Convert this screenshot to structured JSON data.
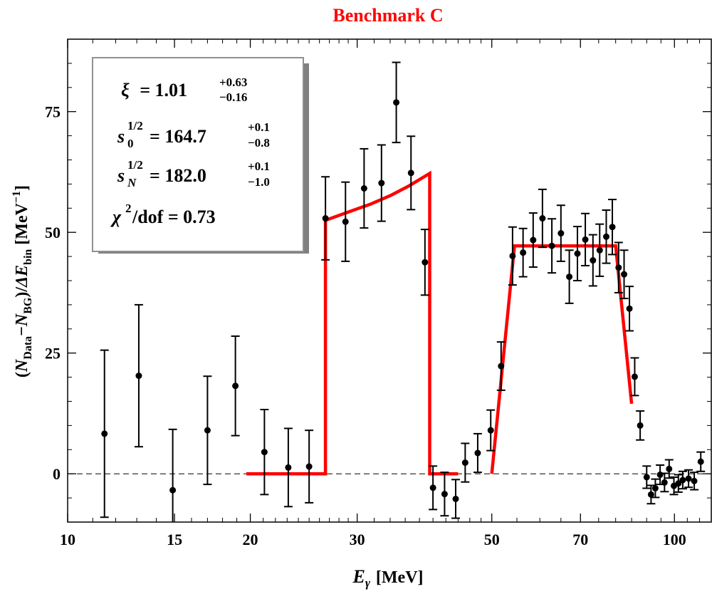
{
  "chart_data": {
    "type": "scatter",
    "title": "Benchmark C",
    "title_color": "#ff0000",
    "xlabel_symbol": "E",
    "xlabel_subscript": "γ",
    "xlabel_unit": "[MeV]",
    "ylabel": "(N_Data − N_BG)/ΔE_bin [MeV^−1]",
    "ylabel_parts": {
      "open": "(",
      "n1": "N",
      "sub1": "Data",
      "minus": "−",
      "n2": "N",
      "sub2": "BG",
      "close": ")/",
      "delta": "Δ",
      "e": "E",
      "sub3": "bin",
      "unit_open": " [MeV",
      "unit_sup": "−1",
      "unit_close": "]"
    },
    "x_scale": "log",
    "xlim": [
      10,
      115
    ],
    "ylim": [
      -10,
      90
    ],
    "x_ticks": [
      10,
      15,
      20,
      30,
      50,
      70,
      100
    ],
    "x_tick_labels": [
      "10",
      "15",
      "20",
      "30",
      "50",
      "70",
      "100"
    ],
    "x_minor_ticks": [
      11,
      12,
      13,
      14,
      16,
      17,
      18,
      19,
      21,
      22,
      23,
      24,
      25,
      26,
      27,
      28,
      29,
      32,
      34,
      36,
      38,
      40,
      42,
      44,
      46,
      48,
      55,
      60,
      65,
      75,
      80,
      85,
      90,
      95,
      105,
      110
    ],
    "y_ticks": [
      0,
      25,
      50,
      75
    ],
    "y_tick_labels": [
      "0",
      "25",
      "50",
      "75"
    ],
    "y_minor_ticks": [
      -5,
      5,
      10,
      15,
      20,
      30,
      35,
      40,
      45,
      55,
      60,
      65,
      70,
      80,
      85
    ],
    "zero_line": true,
    "fit_color": "#ff0000",
    "points_color": "#000000",
    "fit_segments": [
      [
        [
          19.7,
          0
        ],
        [
          26.6,
          0
        ],
        [
          26.6,
          52.5
        ],
        [
          29.0,
          54.2
        ],
        [
          31.5,
          55.8
        ],
        [
          34.0,
          57.6
        ],
        [
          36.5,
          59.6
        ],
        [
          39.5,
          62.2
        ],
        [
          39.5,
          0
        ],
        [
          44.0,
          0
        ]
      ],
      [
        [
          50.0,
          0
        ],
        [
          54.5,
          47.2
        ],
        [
          80.0,
          47.2
        ],
        [
          85.0,
          14.5
        ]
      ]
    ],
    "points": [
      {
        "x": 11.5,
        "y": 8.3,
        "err": 17.3
      },
      {
        "x": 13.1,
        "y": 20.3,
        "err": 14.7
      },
      {
        "x": 14.9,
        "y": -3.4,
        "err": 12.6
      },
      {
        "x": 17.0,
        "y": 9.0,
        "err": 11.2
      },
      {
        "x": 18.9,
        "y": 18.2,
        "err": 10.3
      },
      {
        "x": 21.1,
        "y": 4.5,
        "err": 8.8
      },
      {
        "x": 23.1,
        "y": 1.3,
        "err": 8.1
      },
      {
        "x": 25.0,
        "y": 1.5,
        "err": 7.5
      },
      {
        "x": 26.6,
        "y": 52.9,
        "err": 8.6
      },
      {
        "x": 28.7,
        "y": 52.2,
        "err": 8.2
      },
      {
        "x": 30.8,
        "y": 59.1,
        "err": 8.2
      },
      {
        "x": 32.9,
        "y": 60.2,
        "err": 7.9
      },
      {
        "x": 34.8,
        "y": 76.9,
        "err": 8.3
      },
      {
        "x": 36.8,
        "y": 62.3,
        "err": 7.6
      },
      {
        "x": 38.8,
        "y": 43.8,
        "err": 6.8
      },
      {
        "x": 40.0,
        "y": -2.9,
        "err": 4.5
      },
      {
        "x": 41.8,
        "y": -4.2,
        "err": 4.5
      },
      {
        "x": 43.6,
        "y": -5.2,
        "err": 4.0
      },
      {
        "x": 45.2,
        "y": 2.3,
        "err": 4.0
      },
      {
        "x": 47.4,
        "y": 4.3,
        "err": 4.0
      },
      {
        "x": 49.8,
        "y": 9.0,
        "err": 4.2
      },
      {
        "x": 51.8,
        "y": 22.3,
        "err": 5.0
      },
      {
        "x": 54.1,
        "y": 45.1,
        "err": 6.0
      },
      {
        "x": 56.3,
        "y": 45.8,
        "err": 5.0
      },
      {
        "x": 58.5,
        "y": 48.4,
        "err": 5.6
      },
      {
        "x": 60.6,
        "y": 52.9,
        "err": 6.0
      },
      {
        "x": 62.8,
        "y": 47.2,
        "err": 5.6
      },
      {
        "x": 65.0,
        "y": 49.8,
        "err": 5.8
      },
      {
        "x": 67.1,
        "y": 40.8,
        "err": 5.5
      },
      {
        "x": 69.2,
        "y": 45.6,
        "err": 5.6
      },
      {
        "x": 71.3,
        "y": 48.5,
        "err": 5.4
      },
      {
        "x": 73.4,
        "y": 44.2,
        "err": 5.3
      },
      {
        "x": 75.3,
        "y": 46.3,
        "err": 5.4
      },
      {
        "x": 77.2,
        "y": 49.1,
        "err": 5.5
      },
      {
        "x": 79.0,
        "y": 51.1,
        "err": 5.7
      },
      {
        "x": 80.9,
        "y": 42.7,
        "err": 5.2
      },
      {
        "x": 82.6,
        "y": 41.3,
        "err": 5.0
      },
      {
        "x": 84.3,
        "y": 34.2,
        "err": 4.6
      },
      {
        "x": 86.0,
        "y": 20.1,
        "err": 3.9
      },
      {
        "x": 87.8,
        "y": 10.0,
        "err": 3.0
      },
      {
        "x": 90.0,
        "y": -0.7,
        "err": 2.3
      },
      {
        "x": 91.5,
        "y": -4.3,
        "err": 1.9
      },
      {
        "x": 93.0,
        "y": -3.0,
        "err": 1.9
      },
      {
        "x": 94.7,
        "y": -0.2,
        "err": 2.0
      },
      {
        "x": 96.3,
        "y": -1.8,
        "err": 1.9
      },
      {
        "x": 98.0,
        "y": 1.0,
        "err": 1.9
      },
      {
        "x": 99.8,
        "y": -2.5,
        "err": 1.8
      },
      {
        "x": 101.5,
        "y": -2.0,
        "err": 1.8
      },
      {
        "x": 103.2,
        "y": -1.3,
        "err": 1.8
      },
      {
        "x": 105.5,
        "y": -1.0,
        "err": 1.8
      },
      {
        "x": 107.8,
        "y": -1.5,
        "err": 1.8
      },
      {
        "x": 110.5,
        "y": 2.5,
        "err": 2.0
      }
    ],
    "legend_box": {
      "position": "top-left",
      "xi_symbol": "ξ",
      "xi_value": "= 1.01",
      "xi_plus": "+0.63",
      "xi_minus": "−0.16",
      "s0_symbol": "s",
      "s0_sup": "1/2",
      "s0_sub": "0",
      "s0_value": "= 164.7",
      "s0_plus": "+0.1",
      "s0_minus": "−0.8",
      "sN_symbol": "s",
      "sN_sup": "1/2",
      "sN_sub": "N",
      "sN_value": "= 182.0",
      "sN_plus": "+0.1",
      "sN_minus": "−1.0",
      "chi_symbol": "χ",
      "chi_sup": "2",
      "chi_value": "/dof = 0.73"
    }
  }
}
